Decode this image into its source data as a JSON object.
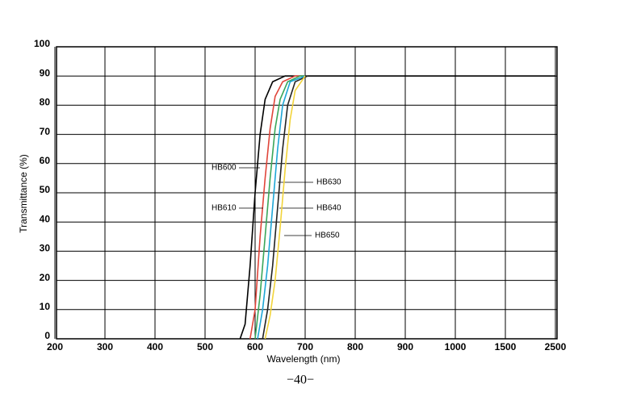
{
  "chart_data": {
    "type": "line",
    "xlabel": "Wavelength (nm)",
    "ylabel": "Transmittance (%)",
    "footer": "−40−",
    "xlim": [
      200,
      2500
    ],
    "xticks": [
      200,
      300,
      400,
      500,
      600,
      700,
      800,
      900,
      1000,
      1500,
      2500
    ],
    "ylim": [
      0,
      100
    ],
    "yticks": [
      0,
      10,
      20,
      30,
      40,
      50,
      60,
      70,
      80,
      90,
      100
    ],
    "grid": true,
    "series": [
      {
        "name": "HB600",
        "color": "#000000",
        "x": [
          570,
          580,
          590,
          600,
          610,
          620,
          635,
          660,
          700,
          2500
        ],
        "values": [
          0,
          5,
          25,
          50,
          70,
          82,
          88,
          90,
          90,
          90
        ]
      },
      {
        "name": "HB610",
        "color": "#e0453a",
        "x": [
          590,
          600,
          610,
          620,
          630,
          640,
          655,
          680,
          700
        ],
        "values": [
          0,
          10,
          35,
          55,
          72,
          83,
          88,
          90,
          90
        ]
      },
      {
        "color": "#3aa65a",
        "x": [
          600,
          610,
          620,
          630,
          640,
          650,
          665,
          690,
          700
        ],
        "values": [
          0,
          15,
          35,
          55,
          72,
          82,
          88,
          90,
          90
        ]
      },
      {
        "name": "HB630",
        "color": "#1ea6d6",
        "x": [
          605,
          615,
          625,
          635,
          645,
          655,
          670,
          700
        ],
        "values": [
          0,
          10,
          25,
          45,
          65,
          80,
          88,
          90
        ]
      },
      {
        "name": "HB640",
        "color": "#222222",
        "x": [
          615,
          625,
          635,
          645,
          655,
          665,
          680,
          705
        ],
        "values": [
          0,
          10,
          25,
          45,
          65,
          80,
          88,
          90
        ]
      },
      {
        "name": "HB650",
        "color": "#f2d43a",
        "x": [
          620,
          630,
          640,
          650,
          660,
          670,
          680,
          700
        ],
        "values": [
          0,
          8,
          20,
          38,
          58,
          75,
          85,
          90
        ]
      }
    ]
  }
}
